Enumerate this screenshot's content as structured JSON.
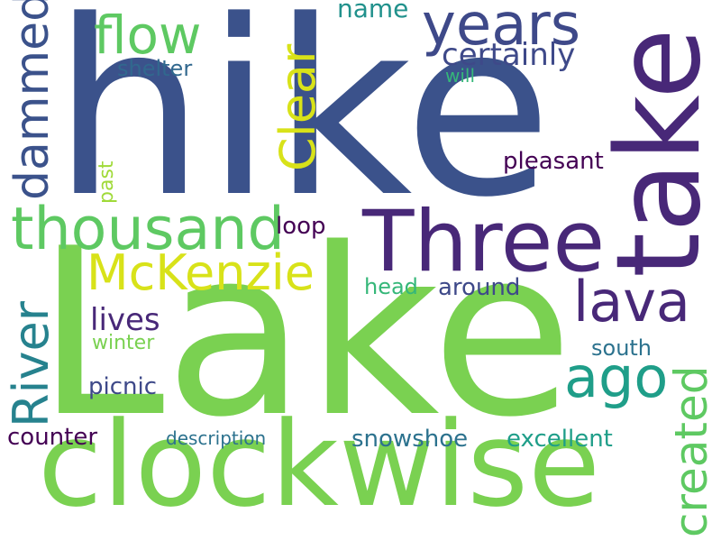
{
  "words": {
    "hike": {
      "text": "hike",
      "color": "#3b528b"
    },
    "lake": {
      "text": "Lake",
      "color": "#7ad151"
    },
    "clockwise": {
      "text": "clockwise",
      "color": "#7ad151"
    },
    "take": {
      "text": "take",
      "color": "#482878"
    },
    "three": {
      "text": "Three",
      "color": "#482878"
    },
    "thousand": {
      "text": "thousand",
      "color": "#5ec962"
    },
    "mckenzie": {
      "text": "McKenzie",
      "color": "#d8e219"
    },
    "years": {
      "text": "years",
      "color": "#3e4989"
    },
    "flow": {
      "text": "flow",
      "color": "#5ec962"
    },
    "dammed": {
      "text": "dammed",
      "color": "#3b528b"
    },
    "clear": {
      "text": "Clear",
      "color": "#d8e219"
    },
    "river": {
      "text": "River",
      "color": "#26828e"
    },
    "lava": {
      "text": "lava",
      "color": "#482878"
    },
    "ago": {
      "text": "ago",
      "color": "#1f9e89"
    },
    "created": {
      "text": "created",
      "color": "#5ec962"
    },
    "certainly": {
      "text": "certainly",
      "color": "#3e4989"
    },
    "name": {
      "text": "name",
      "color": "#21918c"
    },
    "shelter": {
      "text": "shelter",
      "color": "#31688e"
    },
    "will": {
      "text": "will",
      "color": "#35b779"
    },
    "pleasant": {
      "text": "pleasant",
      "color": "#440154"
    },
    "past": {
      "text": "past",
      "color": "#a0da39"
    },
    "loop": {
      "text": "loop",
      "color": "#440154"
    },
    "head": {
      "text": "head",
      "color": "#35b779"
    },
    "around": {
      "text": "around",
      "color": "#3e4989"
    },
    "lives": {
      "text": "lives",
      "color": "#482878"
    },
    "winter": {
      "text": "winter",
      "color": "#7ad151"
    },
    "south": {
      "text": "south",
      "color": "#2c728e"
    },
    "picnic": {
      "text": "picnic",
      "color": "#3e4989"
    },
    "counter": {
      "text": "counter",
      "color": "#440154"
    },
    "description": {
      "text": "description",
      "color": "#2c728e"
    },
    "snowshoe": {
      "text": "snowshoe",
      "color": "#2c728e"
    },
    "excellent": {
      "text": "excellent",
      "color": "#1f9e89"
    }
  }
}
